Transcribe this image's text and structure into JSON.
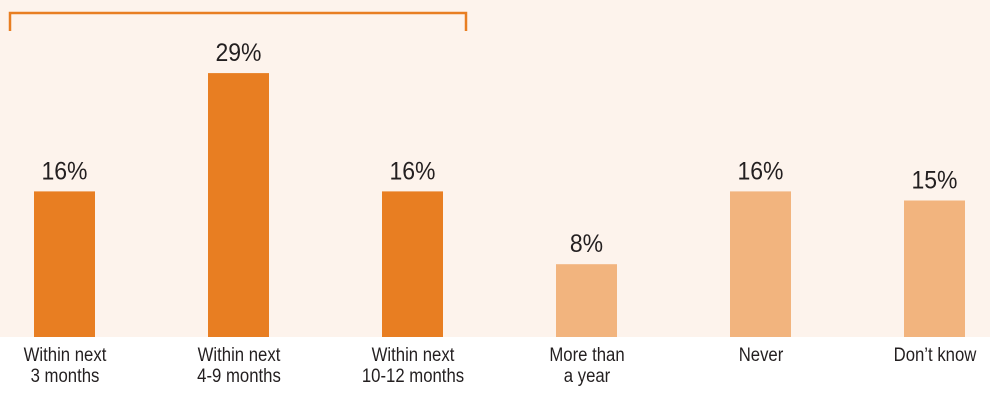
{
  "colors": {
    "background_panel": "#fdf3ec",
    "bar_primary": "#e87e22",
    "bar_secondary": "#f2b47e",
    "bracket": "#e87e22",
    "text": "#231f20"
  },
  "chart_data": {
    "type": "bar",
    "title": "",
    "xlabel": "",
    "ylabel": "",
    "ylim": [
      0,
      35
    ],
    "grid": false,
    "categories": [
      [
        "Within next",
        "3 months"
      ],
      [
        "Within next",
        "4-9 months"
      ],
      [
        "Within next",
        "10-12 months"
      ],
      [
        "More than",
        "a year"
      ],
      [
        "Never"
      ],
      [
        "Don’t know"
      ]
    ],
    "values": [
      16,
      29,
      16,
      8,
      16,
      15
    ],
    "data_labels": [
      "16%",
      "29%",
      "16%",
      "8%",
      "16%",
      "15%"
    ],
    "emphasis": [
      "primary",
      "primary",
      "primary",
      "secondary",
      "secondary",
      "secondary"
    ],
    "bracket_groups": [
      [
        0,
        2
      ]
    ]
  }
}
